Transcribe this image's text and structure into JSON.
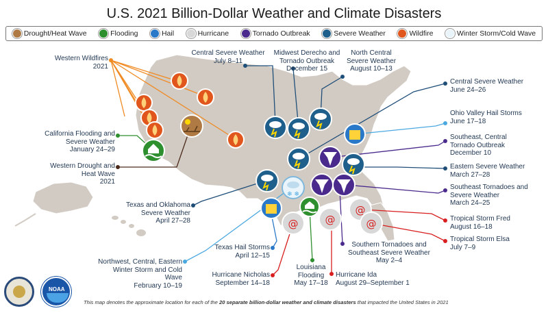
{
  "title": "U.S. 2021 Billion-Dollar Weather and Climate Disasters",
  "legend": [
    {
      "label": "Drought/Heat Wave",
      "icon": "drought-icon",
      "color": "#b07a45"
    },
    {
      "label": "Flooding",
      "icon": "flooding-icon",
      "color": "#2e8f2e"
    },
    {
      "label": "Hail",
      "icon": "hail-icon",
      "color": "#2a78c8"
    },
    {
      "label": "Hurricane",
      "icon": "hurricane-icon",
      "color": "#d8d8d8"
    },
    {
      "label": "Tornado Outbreak",
      "icon": "tornado-icon",
      "color": "#4a2a8c"
    },
    {
      "label": "Severe Weather",
      "icon": "severe-weather-icon",
      "color": "#1f5f8b"
    },
    {
      "label": "Wildfire",
      "icon": "wildfire-icon",
      "color": "#e0561c"
    },
    {
      "label": "Winter Storm/Cold Wave",
      "icon": "winter-storm-icon",
      "color": "#eaf4fb"
    }
  ],
  "events": {
    "western_wildfires": {
      "name": "Western Wildfires",
      "date": "2021"
    },
    "california_flooding": {
      "name": "California Flooding and Severe Weather",
      "date": "January 24–29"
    },
    "western_drought": {
      "name": "Western Drought and Heat Wave",
      "date": "2021"
    },
    "texas_oklahoma": {
      "name": "Texas and Oklahoma Severe Weather",
      "date": "April 27–28"
    },
    "texas_hail": {
      "name": "Texas Hail Storms",
      "date": "April 12–15"
    },
    "winter_storm": {
      "name": "Northwest, Central, Eastern Winter Storm and Cold Wave",
      "date": "February 10–19"
    },
    "hurricane_nicholas": {
      "name": "Hurricane Nicholas",
      "date": "September 14–18"
    },
    "louisiana_flooding": {
      "name": "Louisiana Flooding",
      "date": "May 17–18"
    },
    "hurricane_ida": {
      "name": "Hurricane Ida",
      "date": "August 29–September 1"
    },
    "southern_tornadoes": {
      "name": "Southern Tornadoes and Southeast Severe Weather",
      "date": "May 2–4"
    },
    "central_severe_july": {
      "name": "Central Severe Weather",
      "date": "July 8–11"
    },
    "midwest_derecho": {
      "name": "Midwest Derecho and Tornado Outbreak",
      "date": "December 15"
    },
    "north_central": {
      "name": "North Central Severe Weather",
      "date": "August 10–13"
    },
    "central_severe_june": {
      "name": "Central Severe Weather",
      "date": "June 24–26"
    },
    "ohio_valley_hail": {
      "name": "Ohio Valley Hail Storms",
      "date": "June 17–18"
    },
    "southeast_central_tornado": {
      "name": "Southeast, Central Tornado Outbreak",
      "date": "December 10"
    },
    "eastern_severe": {
      "name": "Eastern Severe Weather",
      "date": "March 27–28"
    },
    "southeast_tornadoes": {
      "name": "Southeast Tornadoes and Severe Weather",
      "date": "March 24–25"
    },
    "ts_fred": {
      "name": "Tropical Storm Fred",
      "date": "August 16–18"
    },
    "ts_elsa": {
      "name": "Tropical Storm Elsa",
      "date": "July 7–9"
    }
  },
  "footnote": {
    "prefix": "This map denotes the approximate location for each of the ",
    "bold": "20 separate billion-dollar weather and climate disasters",
    "suffix": " that impacted the United States in 2021"
  },
  "logos": [
    "Department of Commerce seal",
    "NOAA logo"
  ]
}
